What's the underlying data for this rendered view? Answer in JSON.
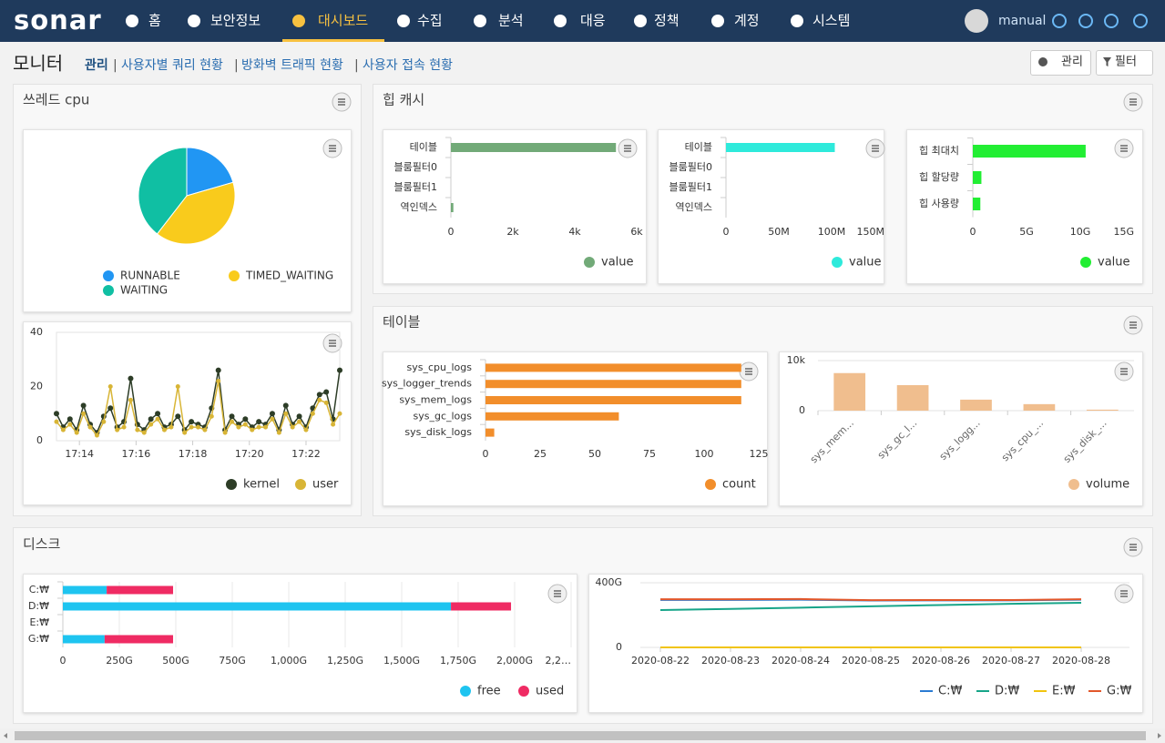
{
  "nav": {
    "logo": "sonar",
    "items": [
      "홈",
      "보안정보",
      "대시보드",
      "수집",
      "분석",
      "대응",
      "정책",
      "계정",
      "시스템"
    ],
    "active_index": 2,
    "user": "manual"
  },
  "header": {
    "title": "모니터",
    "links": [
      "관리",
      "사용자별 쿼리 현황",
      "방화벽 트래픽 현황",
      "사용자 접속 현황"
    ],
    "separator": "|",
    "buttons": [
      "관리",
      "필터"
    ]
  },
  "panels": [
    "쓰레드 cpu",
    "힙 캐시",
    "테이블",
    "디스크"
  ],
  "chart_data": [
    {
      "type": "pie",
      "categories": [
        "RUNNABLE",
        "TIMED_WAITING",
        "WAITING"
      ],
      "values": [
        20.5,
        40,
        39.5
      ],
      "colors": [
        "#2196f3",
        "#f9cb1c",
        "#10bfa3"
      ]
    },
    {
      "type": "line",
      "markers": true,
      "grid": false,
      "xlim": [
        0,
        42
      ],
      "xticks": [
        {
          "value": 3.4,
          "label": "17:14"
        },
        {
          "value": 11.8,
          "label": "17:16"
        },
        {
          "value": 20.2,
          "label": "17:18"
        },
        {
          "value": 28.6,
          "label": "17:20"
        },
        {
          "value": 37,
          "label": "17:22"
        }
      ],
      "ylim": [
        0,
        40
      ],
      "yticks": [
        0,
        20,
        40
      ],
      "series": [
        {
          "name": "kernel",
          "color": "#2d3d27",
          "values": [
            10,
            5,
            8,
            4,
            13,
            6,
            3,
            9,
            12,
            5,
            7,
            23,
            6,
            4,
            8,
            10,
            5,
            6,
            9,
            4,
            7,
            6,
            5,
            12,
            26,
            4,
            9,
            6,
            8,
            5,
            7,
            6,
            10,
            4,
            13,
            6,
            9,
            5,
            12,
            17,
            18,
            8,
            26
          ]
        },
        {
          "name": "user",
          "color": "#d8b536",
          "values": [
            7,
            4,
            6,
            3,
            10,
            5,
            2,
            7,
            20,
            4,
            5,
            15,
            4,
            3,
            6,
            8,
            4,
            5,
            20,
            3,
            5,
            5,
            4,
            9,
            22,
            3,
            7,
            5,
            6,
            4,
            5,
            5,
            8,
            3,
            10,
            5,
            7,
            4,
            10,
            15,
            14,
            6,
            10
          ]
        }
      ]
    },
    {
      "type": "hbar",
      "categories": [
        "테이블",
        "블룸필터0",
        "블룸필터1",
        "역인덱스"
      ],
      "series": [
        {
          "name": "value",
          "color": "#72aa78",
          "values": [
            5.33,
            0,
            0,
            0.08
          ]
        }
      ],
      "xlim": [
        0,
        6
      ],
      "xticks": [
        0,
        {
          "value": 2,
          "label": "2k"
        },
        {
          "value": 4,
          "label": "4k"
        },
        {
          "value": 6,
          "label": "6k"
        }
      ]
    },
    {
      "type": "hbar",
      "categories": [
        "테이블",
        "블룸필터0",
        "블룸필터1",
        "역인덱스"
      ],
      "series": [
        {
          "name": "value",
          "color": "#2eeadb",
          "values": [
            103,
            0,
            0,
            0
          ]
        }
      ],
      "xlim": [
        0,
        150
      ],
      "xticks": [
        0,
        {
          "value": 50,
          "label": "50M"
        },
        {
          "value": 100,
          "label": "100M"
        },
        {
          "value": 150,
          "label": "150M"
        }
      ]
    },
    {
      "type": "hbar",
      "categories": [
        "힙 최대치",
        "힙 할당량",
        "힙 사용량"
      ],
      "series": [
        {
          "name": "value",
          "color": "#22ee33",
          "values": [
            10.5,
            0.8,
            0.7
          ]
        }
      ],
      "xlim": [
        0,
        15
      ],
      "xticks": [
        0,
        {
          "value": 5,
          "label": "5G"
        },
        {
          "value": 10,
          "label": "10G"
        },
        {
          "value": 15,
          "label": "15G"
        }
      ]
    },
    {
      "type": "hbar",
      "categories": [
        "sys_cpu_logs",
        "sys_logger_trends",
        "sys_mem_logs",
        "sys_gc_logs",
        "sys_disk_logs"
      ],
      "series": [
        {
          "name": "count",
          "color": "#f28e2b",
          "values": [
            117,
            117,
            117,
            61,
            4
          ]
        }
      ],
      "xlim": [
        0,
        125
      ],
      "xticks": [
        0,
        25,
        50,
        75,
        100,
        125
      ]
    },
    {
      "type": "vbar",
      "grid": true,
      "categories": [
        "sys_mem...",
        "sys_gc_l...",
        "sys_logg...",
        "sys_cpu_...",
        "sys_disk_..."
      ],
      "series": [
        {
          "name": "volume",
          "color": "#f0be8e",
          "values": [
            7.5,
            5.1,
            2.2,
            1.3,
            0.2
          ]
        }
      ],
      "ylim": [
        0,
        10
      ],
      "yticks": [
        0,
        {
          "value": 10,
          "label": "10k"
        }
      ]
    },
    {
      "type": "hbar",
      "stacked": true,
      "grid": true,
      "categories": [
        "C:₩",
        "D:₩",
        "E:₩",
        "G:₩"
      ],
      "series": [
        {
          "name": "free",
          "color": "#1ec4f0",
          "values": [
            194,
            1718,
            0,
            185
          ]
        },
        {
          "name": "used",
          "color": "#ef2b63",
          "values": [
            294,
            266,
            0,
            303
          ]
        }
      ],
      "xlim": [
        0,
        2250
      ],
      "xticks": [
        0,
        {
          "value": 250,
          "label": "250G"
        },
        {
          "value": 500,
          "label": "500G"
        },
        {
          "value": 750,
          "label": "750G"
        },
        {
          "value": 1000,
          "label": "1,000G"
        },
        {
          "value": 1250,
          "label": "1,250G"
        },
        {
          "value": 1500,
          "label": "1,500G"
        },
        {
          "value": 1750,
          "label": "1,750G"
        },
        {
          "value": 2000,
          "label": "2,000G"
        },
        {
          "value": 2250,
          "label": "2,2…"
        }
      ]
    },
    {
      "type": "line",
      "markers": false,
      "grid": true,
      "legend_marker": "line",
      "x": [
        "2020-08-22",
        "2020-08-23",
        "2020-08-24",
        "2020-08-25",
        "2020-08-26",
        "2020-08-27",
        "2020-08-28"
      ],
      "ylim": [
        0,
        400
      ],
      "yticks": [
        0,
        {
          "value": 400,
          "label": "400G"
        }
      ],
      "series": [
        {
          "name": "C:₩",
          "color": "#2b7bd2",
          "values": [
            294,
            294,
            295,
            290,
            291,
            291,
            295
          ]
        },
        {
          "name": "D:₩",
          "color": "#17a589",
          "values": [
            231,
            238,
            246,
            254,
            262,
            270,
            276
          ]
        },
        {
          "name": "E:₩",
          "color": "#f1c40f",
          "values": [
            0,
            0,
            0,
            0,
            0,
            0,
            0
          ]
        },
        {
          "name": "G:₩",
          "color": "#e2572b",
          "values": [
            298,
            298,
            299,
            292,
            293,
            293,
            298
          ]
        }
      ]
    }
  ]
}
